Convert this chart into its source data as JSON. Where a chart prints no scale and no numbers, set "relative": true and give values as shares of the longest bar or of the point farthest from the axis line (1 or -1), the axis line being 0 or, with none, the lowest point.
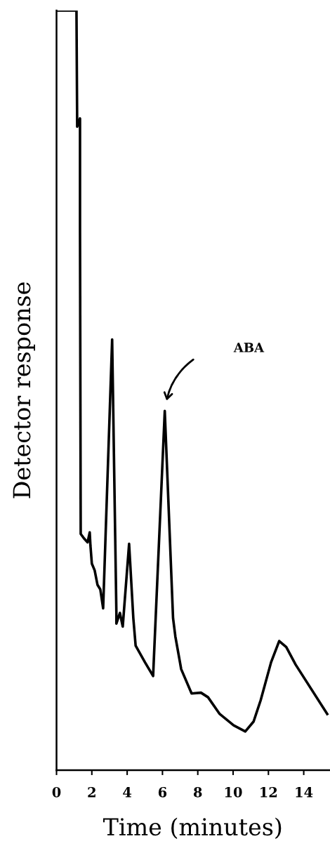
{
  "chart_data": {
    "type": "line",
    "relative": true,
    "xlabel": "Time (minutes)",
    "ylabel": "Detector response",
    "x": [
      0,
      1.13,
      1.17,
      1.33,
      1.33,
      1.37,
      1.56,
      1.76,
      1.88,
      1.92,
      2.0,
      2.16,
      2.32,
      2.48,
      2.64,
      3.15,
      3.39,
      3.39,
      3.59,
      3.75,
      4.11,
      4.35,
      4.48,
      5.01,
      5.47,
      6.13,
      6.6,
      6.73,
      7.06,
      7.65,
      8.18,
      8.58,
      9.24,
      10.03,
      10.69,
      11.16,
      11.56,
      12.15,
      12.61,
      13.01,
      13.54,
      15.33
    ],
    "series": [
      {
        "color": "#000000",
        "values": [
          1.0,
          1.0,
          0.847,
          0.858,
          0.712,
          0.311,
          0.305,
          0.3,
          0.313,
          0.296,
          0.272,
          0.263,
          0.244,
          0.238,
          0.213,
          0.567,
          0.207,
          0.193,
          0.207,
          0.189,
          0.298,
          0.2,
          0.164,
          0.142,
          0.124,
          0.473,
          0.2,
          0.176,
          0.133,
          0.101,
          0.102,
          0.096,
          0.074,
          0.059,
          0.051,
          0.064,
          0.092,
          0.142,
          0.17,
          0.162,
          0.139,
          0.074
        ]
      }
    ],
    "xlim": [
      0,
      15.45
    ],
    "xticks": [
      0,
      2,
      4,
      6,
      8,
      10,
      12,
      14
    ],
    "annotations": [
      "ABA"
    ],
    "grid": false,
    "legend": false,
    "marker": "none",
    "line_style": "solid"
  }
}
